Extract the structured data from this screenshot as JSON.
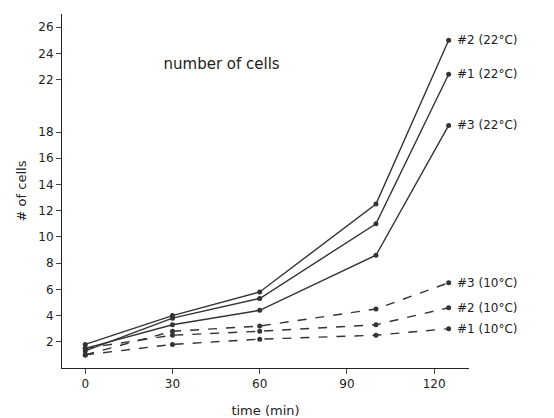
{
  "chart_data": {
    "type": "line",
    "title": "number of cells",
    "x_label": "time (min)",
    "y_label": "# of cells",
    "x": [
      0,
      30,
      60,
      100,
      125
    ],
    "series": [
      {
        "name": "#2 (22°C)",
        "color": "#333333",
        "line_style": "solid",
        "marker": "circle",
        "values": [
          1.8,
          4.0,
          5.8,
          12.5,
          25.0
        ]
      },
      {
        "name": "#1 (22°C)",
        "color": "#333333",
        "line_style": "solid",
        "marker": "circle",
        "values": [
          1.3,
          3.8,
          5.3,
          11.0,
          22.4
        ]
      },
      {
        "name": "#3 (22°C)",
        "color": "#333333",
        "line_style": "solid",
        "marker": "circle",
        "values": [
          1.5,
          3.3,
          4.4,
          8.6,
          18.5
        ]
      },
      {
        "name": "#3 (10°C)",
        "color": "#333333",
        "line_style": "dash",
        "marker": "circle",
        "values": [
          1.0,
          2.8,
          3.2,
          4.5,
          6.5
        ]
      },
      {
        "name": "#2 (10°C)",
        "color": "#333333",
        "line_style": "dash",
        "marker": "circle",
        "values": [
          1.5,
          2.5,
          2.8,
          3.3,
          4.6
        ]
      },
      {
        "name": "#1 (10°C)",
        "color": "#333333",
        "line_style": "dash",
        "marker": "circle",
        "values": [
          1.0,
          1.8,
          2.2,
          2.5,
          3.0
        ]
      }
    ],
    "xlim": [
      -8,
      132
    ],
    "xticks": [
      0,
      30,
      60,
      90,
      120
    ],
    "ylim": [
      0,
      27
    ],
    "yticks": [
      2,
      4,
      6,
      8,
      10,
      12,
      14,
      16,
      18,
      22,
      24,
      26
    ],
    "grid": false
  }
}
